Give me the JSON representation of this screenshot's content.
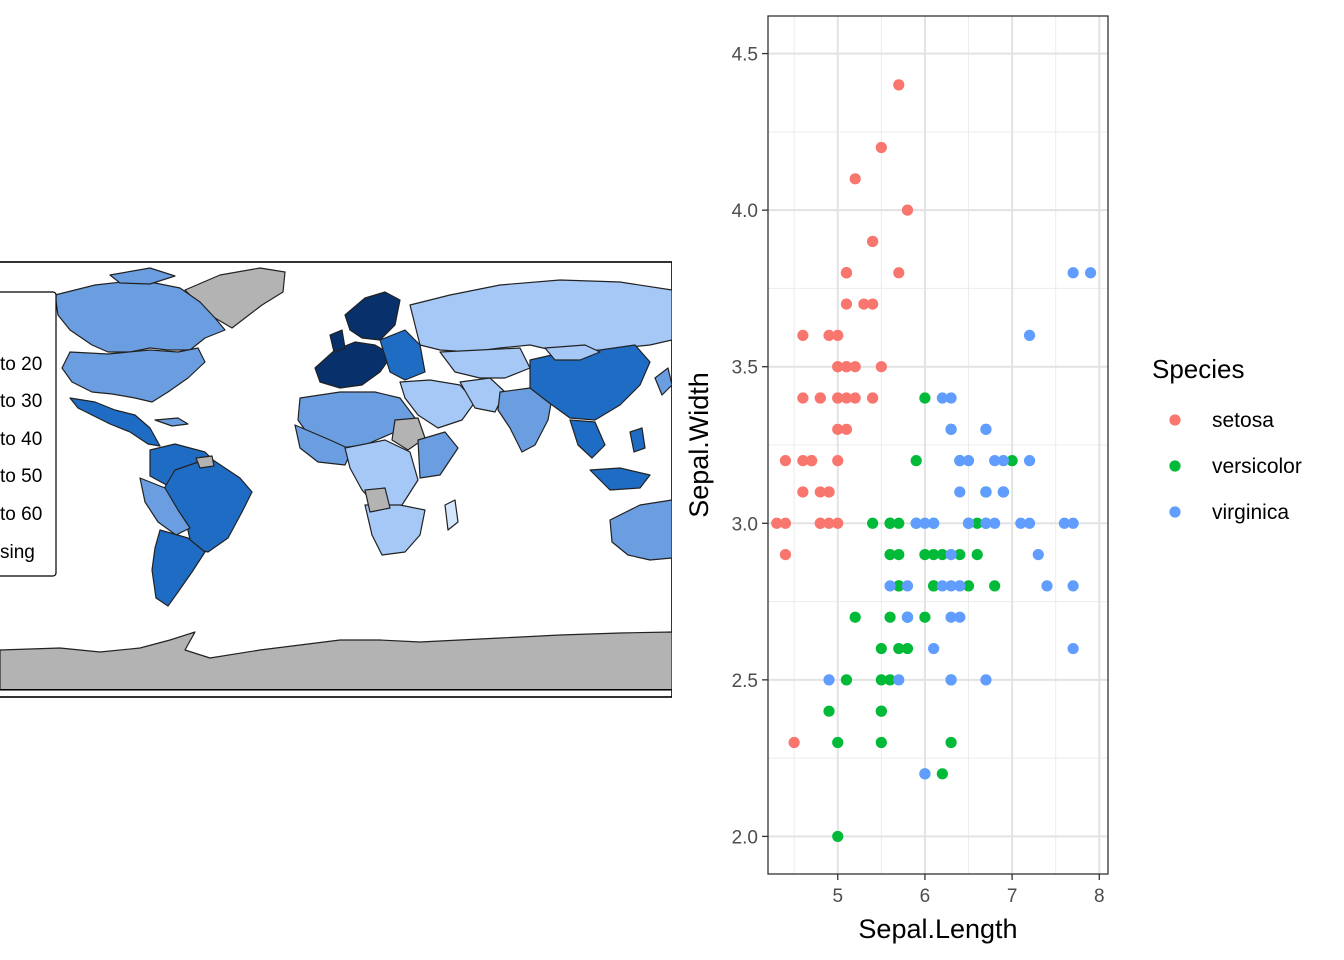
{
  "map": {
    "legend_items": [
      "to 20",
      "to 30",
      "to 40",
      "to 50",
      "to 60",
      "sing"
    ],
    "colors": {
      "darkest": "#08306b",
      "dark": "#1f6cc4",
      "mid_dark": "#2f77c9",
      "mid": "#6a9ee0",
      "light": "#a6c8f7",
      "lightest": "#d4e6fb",
      "missing": "#b3b3b3",
      "border": "#222222"
    }
  },
  "chart_data": {
    "type": "scatter",
    "title": "",
    "xlabel": "Sepal.Length",
    "ylabel": "Sepal.Width",
    "xlim": [
      4.2,
      8.1
    ],
    "ylim": [
      1.88,
      4.62
    ],
    "xticks": [
      "5",
      "6",
      "7",
      "8"
    ],
    "yticks": [
      "2.0",
      "2.5",
      "3.0",
      "3.5",
      "4.0",
      "4.5"
    ],
    "grid": true,
    "legend": {
      "title": "Species",
      "placement": "right"
    },
    "series": [
      {
        "name": "setosa",
        "color": "#F8766D",
        "points": [
          [
            5.1,
            3.5
          ],
          [
            4.9,
            3.0
          ],
          [
            4.7,
            3.2
          ],
          [
            4.6,
            3.1
          ],
          [
            5.0,
            3.6
          ],
          [
            5.4,
            3.9
          ],
          [
            4.6,
            3.4
          ],
          [
            5.0,
            3.4
          ],
          [
            4.4,
            2.9
          ],
          [
            4.9,
            3.1
          ],
          [
            5.4,
            3.7
          ],
          [
            4.8,
            3.4
          ],
          [
            4.8,
            3.0
          ],
          [
            4.3,
            3.0
          ],
          [
            5.8,
            4.0
          ],
          [
            5.7,
            4.4
          ],
          [
            5.4,
            3.9
          ],
          [
            5.1,
            3.5
          ],
          [
            5.7,
            3.8
          ],
          [
            5.1,
            3.8
          ],
          [
            5.4,
            3.4
          ],
          [
            5.1,
            3.7
          ],
          [
            4.6,
            3.6
          ],
          [
            5.1,
            3.3
          ],
          [
            4.8,
            3.4
          ],
          [
            5.0,
            3.0
          ],
          [
            5.0,
            3.4
          ],
          [
            5.2,
            3.5
          ],
          [
            5.2,
            3.4
          ],
          [
            4.7,
            3.2
          ],
          [
            4.8,
            3.1
          ],
          [
            5.4,
            3.4
          ],
          [
            5.2,
            4.1
          ],
          [
            5.5,
            4.2
          ],
          [
            4.9,
            3.1
          ],
          [
            5.0,
            3.2
          ],
          [
            5.5,
            3.5
          ],
          [
            4.9,
            3.6
          ],
          [
            4.4,
            3.0
          ],
          [
            5.1,
            3.4
          ],
          [
            5.0,
            3.5
          ],
          [
            4.5,
            2.3
          ],
          [
            4.4,
            3.2
          ],
          [
            5.0,
            3.5
          ],
          [
            5.1,
            3.8
          ],
          [
            4.8,
            3.0
          ],
          [
            5.1,
            3.8
          ],
          [
            4.6,
            3.2
          ],
          [
            5.3,
            3.7
          ],
          [
            5.0,
            3.3
          ]
        ]
      },
      {
        "name": "versicolor",
        "color": "#00BA38",
        "points": [
          [
            7.0,
            3.2
          ],
          [
            6.4,
            3.2
          ],
          [
            6.9,
            3.1
          ],
          [
            5.5,
            2.3
          ],
          [
            6.5,
            2.8
          ],
          [
            5.7,
            2.8
          ],
          [
            6.3,
            3.3
          ],
          [
            4.9,
            2.4
          ],
          [
            6.6,
            2.9
          ],
          [
            5.2,
            2.7
          ],
          [
            5.0,
            2.0
          ],
          [
            5.9,
            3.0
          ],
          [
            6.0,
            2.2
          ],
          [
            6.1,
            2.9
          ],
          [
            5.6,
            2.9
          ],
          [
            6.7,
            3.1
          ],
          [
            5.6,
            3.0
          ],
          [
            5.8,
            2.7
          ],
          [
            6.2,
            2.2
          ],
          [
            5.6,
            2.5
          ],
          [
            5.9,
            3.2
          ],
          [
            6.1,
            2.8
          ],
          [
            6.3,
            2.5
          ],
          [
            6.1,
            2.8
          ],
          [
            6.4,
            2.9
          ],
          [
            6.6,
            3.0
          ],
          [
            6.8,
            2.8
          ],
          [
            6.7,
            3.0
          ],
          [
            6.0,
            2.9
          ],
          [
            5.7,
            2.6
          ],
          [
            5.5,
            2.4
          ],
          [
            5.5,
            2.4
          ],
          [
            5.8,
            2.7
          ],
          [
            6.0,
            2.7
          ],
          [
            5.4,
            3.0
          ],
          [
            6.0,
            3.4
          ],
          [
            6.7,
            3.1
          ],
          [
            6.3,
            2.3
          ],
          [
            5.6,
            3.0
          ],
          [
            5.5,
            2.5
          ],
          [
            5.5,
            2.6
          ],
          [
            6.1,
            3.0
          ],
          [
            5.8,
            2.6
          ],
          [
            5.0,
            2.3
          ],
          [
            5.6,
            2.7
          ],
          [
            5.7,
            3.0
          ],
          [
            5.7,
            2.9
          ],
          [
            6.2,
            2.9
          ],
          [
            5.1,
            2.5
          ],
          [
            5.7,
            2.8
          ]
        ]
      },
      {
        "name": "virginica",
        "color": "#619CFF",
        "points": [
          [
            6.3,
            3.3
          ],
          [
            5.8,
            2.7
          ],
          [
            7.1,
            3.0
          ],
          [
            6.3,
            2.9
          ],
          [
            6.5,
            3.0
          ],
          [
            7.6,
            3.0
          ],
          [
            4.9,
            2.5
          ],
          [
            7.3,
            2.9
          ],
          [
            6.7,
            2.5
          ],
          [
            7.2,
            3.6
          ],
          [
            6.5,
            3.2
          ],
          [
            6.4,
            2.7
          ],
          [
            6.8,
            3.0
          ],
          [
            5.7,
            2.5
          ],
          [
            5.8,
            2.8
          ],
          [
            6.4,
            3.2
          ],
          [
            6.5,
            3.0
          ],
          [
            7.7,
            3.8
          ],
          [
            7.7,
            2.6
          ],
          [
            6.0,
            2.2
          ],
          [
            6.9,
            3.2
          ],
          [
            5.6,
            2.8
          ],
          [
            7.7,
            2.8
          ],
          [
            6.3,
            2.7
          ],
          [
            6.7,
            3.3
          ],
          [
            7.2,
            3.2
          ],
          [
            6.2,
            2.8
          ],
          [
            6.1,
            3.0
          ],
          [
            6.4,
            2.8
          ],
          [
            7.2,
            3.0
          ],
          [
            7.4,
            2.8
          ],
          [
            7.9,
            3.8
          ],
          [
            6.4,
            2.8
          ],
          [
            6.3,
            2.8
          ],
          [
            6.1,
            2.6
          ],
          [
            7.7,
            3.0
          ],
          [
            6.3,
            3.4
          ],
          [
            6.4,
            3.1
          ],
          [
            6.0,
            3.0
          ],
          [
            6.9,
            3.1
          ],
          [
            6.7,
            3.1
          ],
          [
            6.9,
            3.1
          ],
          [
            5.8,
            2.7
          ],
          [
            6.8,
            3.2
          ],
          [
            6.7,
            3.3
          ],
          [
            6.7,
            3.0
          ],
          [
            6.3,
            2.5
          ],
          [
            6.5,
            3.0
          ],
          [
            6.2,
            3.4
          ],
          [
            5.9,
            3.0
          ]
        ]
      }
    ]
  }
}
